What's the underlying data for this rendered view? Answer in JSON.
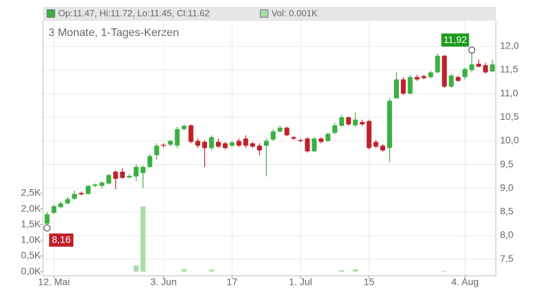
{
  "chart_data": {
    "type": "candlestick",
    "header": {
      "ohlc": "Op:11.47, Hi:11.72, Lo:11.45, Cl:11.62",
      "volume": "Vol: 0.001K"
    },
    "subtitle": "3 Monate, 1-Tages-Kerzen",
    "categories": [
      null,
      "12. Mai",
      null,
      null,
      null,
      null,
      null,
      null,
      null,
      null,
      null,
      null,
      null,
      null,
      null,
      null,
      null,
      "3. Jun",
      null,
      null,
      null,
      null,
      null,
      null,
      null,
      null,
      null,
      "17",
      null,
      null,
      null,
      null,
      null,
      null,
      null,
      null,
      null,
      "1. Jul",
      null,
      null,
      null,
      null,
      null,
      null,
      null,
      null,
      null,
      "15",
      null,
      null,
      null,
      null,
      null,
      null,
      null,
      null,
      null,
      null,
      null,
      null,
      null,
      "4. Aug",
      null,
      null,
      null,
      null
    ],
    "open": [
      8.25,
      8.48,
      8.6,
      8.68,
      8.78,
      8.9,
      8.88,
      9.05,
      9.05,
      9.1,
      9.35,
      9.35,
      9.23,
      9.25,
      9.32,
      9.45,
      9.7,
      9.92,
      9.92,
      9.9,
      10.25,
      10.33,
      10.0,
      9.98,
      9.85,
      9.98,
      9.95,
      9.9,
      10.0,
      10.05,
      9.95,
      9.9,
      9.9,
      10.03,
      10.2,
      10.28,
      10.08,
      10.02,
      10.05,
      9.78,
      10.05,
      10.0,
      10.17,
      10.32,
      10.5,
      10.33,
      10.4,
      10.42,
      9.98,
      9.9,
      9.85,
      10.9,
      11.3,
      11.0,
      11.35,
      11.37,
      11.35,
      11.45,
      11.8,
      11.15,
      11.35,
      11.35,
      11.5,
      11.63,
      11.6,
      11.47
    ],
    "high": [
      8.5,
      8.65,
      8.72,
      8.82,
      8.95,
      8.93,
      9.07,
      9.1,
      9.15,
      9.3,
      9.38,
      9.42,
      9.3,
      9.5,
      9.48,
      9.72,
      9.95,
      9.95,
      10.02,
      10.3,
      10.35,
      10.35,
      10.05,
      10.02,
      10.12,
      10.05,
      9.98,
      10.0,
      10.05,
      10.12,
      9.98,
      9.95,
      10.05,
      10.25,
      10.32,
      10.3,
      10.1,
      10.05,
      10.08,
      10.08,
      10.08,
      10.18,
      10.38,
      10.55,
      10.52,
      10.6,
      10.45,
      10.45,
      10.02,
      9.93,
      10.9,
      11.45,
      11.35,
      11.4,
      11.4,
      11.4,
      11.48,
      11.85,
      11.82,
      11.42,
      11.38,
      11.55,
      11.92,
      11.72,
      11.65,
      11.72
    ],
    "low": [
      8.16,
      8.45,
      8.58,
      8.66,
      8.75,
      8.85,
      8.86,
      9.02,
      9.0,
      9.08,
      8.98,
      9.2,
      9.2,
      9.15,
      9.0,
      9.42,
      9.6,
      9.86,
      9.88,
      9.85,
      10.22,
      9.95,
      9.85,
      9.45,
      9.8,
      9.85,
      9.82,
      9.87,
      9.87,
      9.85,
      9.85,
      9.7,
      9.25,
      10.0,
      10.18,
      10.1,
      10.02,
      9.97,
      9.75,
      9.76,
      9.95,
      9.98,
      10.14,
      10.3,
      10.32,
      10.3,
      10.32,
      9.82,
      9.85,
      9.77,
      9.55,
      10.9,
      10.97,
      10.98,
      11.27,
      11.3,
      11.32,
      11.43,
      11.12,
      11.12,
      11.25,
      11.3,
      11.45,
      11.55,
      11.42,
      11.45
    ],
    "close": [
      8.45,
      8.62,
      8.68,
      8.77,
      8.88,
      8.87,
      9.05,
      9.08,
      9.12,
      9.28,
      9.2,
      9.22,
      9.26,
      9.45,
      9.45,
      9.68,
      9.9,
      9.9,
      10.0,
      10.25,
      10.32,
      9.98,
      9.9,
      9.85,
      10.08,
      9.88,
      9.85,
      9.97,
      9.9,
      9.9,
      9.88,
      9.8,
      10.0,
      10.2,
      10.28,
      10.12,
      10.05,
      10.0,
      9.78,
      10.05,
      9.98,
      10.15,
      10.33,
      10.5,
      10.35,
      10.45,
      10.35,
      9.85,
      9.88,
      9.8,
      10.85,
      11.3,
      11.0,
      11.35,
      11.3,
      11.33,
      11.45,
      11.8,
      11.15,
      11.38,
      11.27,
      11.52,
      11.62,
      11.57,
      11.45,
      11.62
    ],
    "volume": [
      0,
      0,
      0,
      0,
      0,
      0,
      0,
      0,
      0,
      0,
      0,
      0,
      0,
      200,
      2080,
      0,
      0,
      0,
      0,
      0,
      80,
      0,
      0,
      0,
      70,
      0,
      0,
      0,
      0,
      0,
      0,
      0,
      0,
      0,
      0,
      0,
      0,
      0,
      0,
      0,
      0,
      0,
      0,
      50,
      0,
      80,
      0,
      0,
      0,
      0,
      0,
      0,
      0,
      0,
      0,
      0,
      0,
      0,
      20,
      0,
      0,
      0,
      0,
      0,
      0,
      0
    ],
    "up_color": "#3cb043",
    "down_color": "#c0202a",
    "volume_color": "#a8dca8",
    "ylim": [
      7.15,
      12.54
    ],
    "yticks": [
      {
        "value": 7.5,
        "label": "7,5"
      },
      {
        "value": 8.0,
        "label": "8,0"
      },
      {
        "value": 8.5,
        "label": "8,5"
      },
      {
        "value": 9.0,
        "label": "9,0"
      },
      {
        "value": 9.5,
        "label": "9,5"
      },
      {
        "value": 10.0,
        "label": "10,0"
      },
      {
        "value": 10.5,
        "label": "10,5"
      },
      {
        "value": 11.0,
        "label": "11,0"
      },
      {
        "value": 11.5,
        "label": "11,5"
      },
      {
        "value": 12.0,
        "label": "12,0"
      }
    ],
    "y2lim": [
      -130,
      8000
    ],
    "y2ticks": [
      {
        "value": 0,
        "label": "0,0K"
      },
      {
        "value": 500,
        "label": "0,5K"
      },
      {
        "value": 1000,
        "label": "1,0K"
      },
      {
        "value": 1500,
        "label": "1,5K"
      },
      {
        "value": 2000,
        "label": "2,0K"
      },
      {
        "value": 2500,
        "label": "2,5K"
      }
    ],
    "grid": true,
    "max_label": {
      "label": "11,92",
      "value": 11.92
    },
    "min_label": {
      "label": "8,16",
      "value": 8.16
    }
  }
}
